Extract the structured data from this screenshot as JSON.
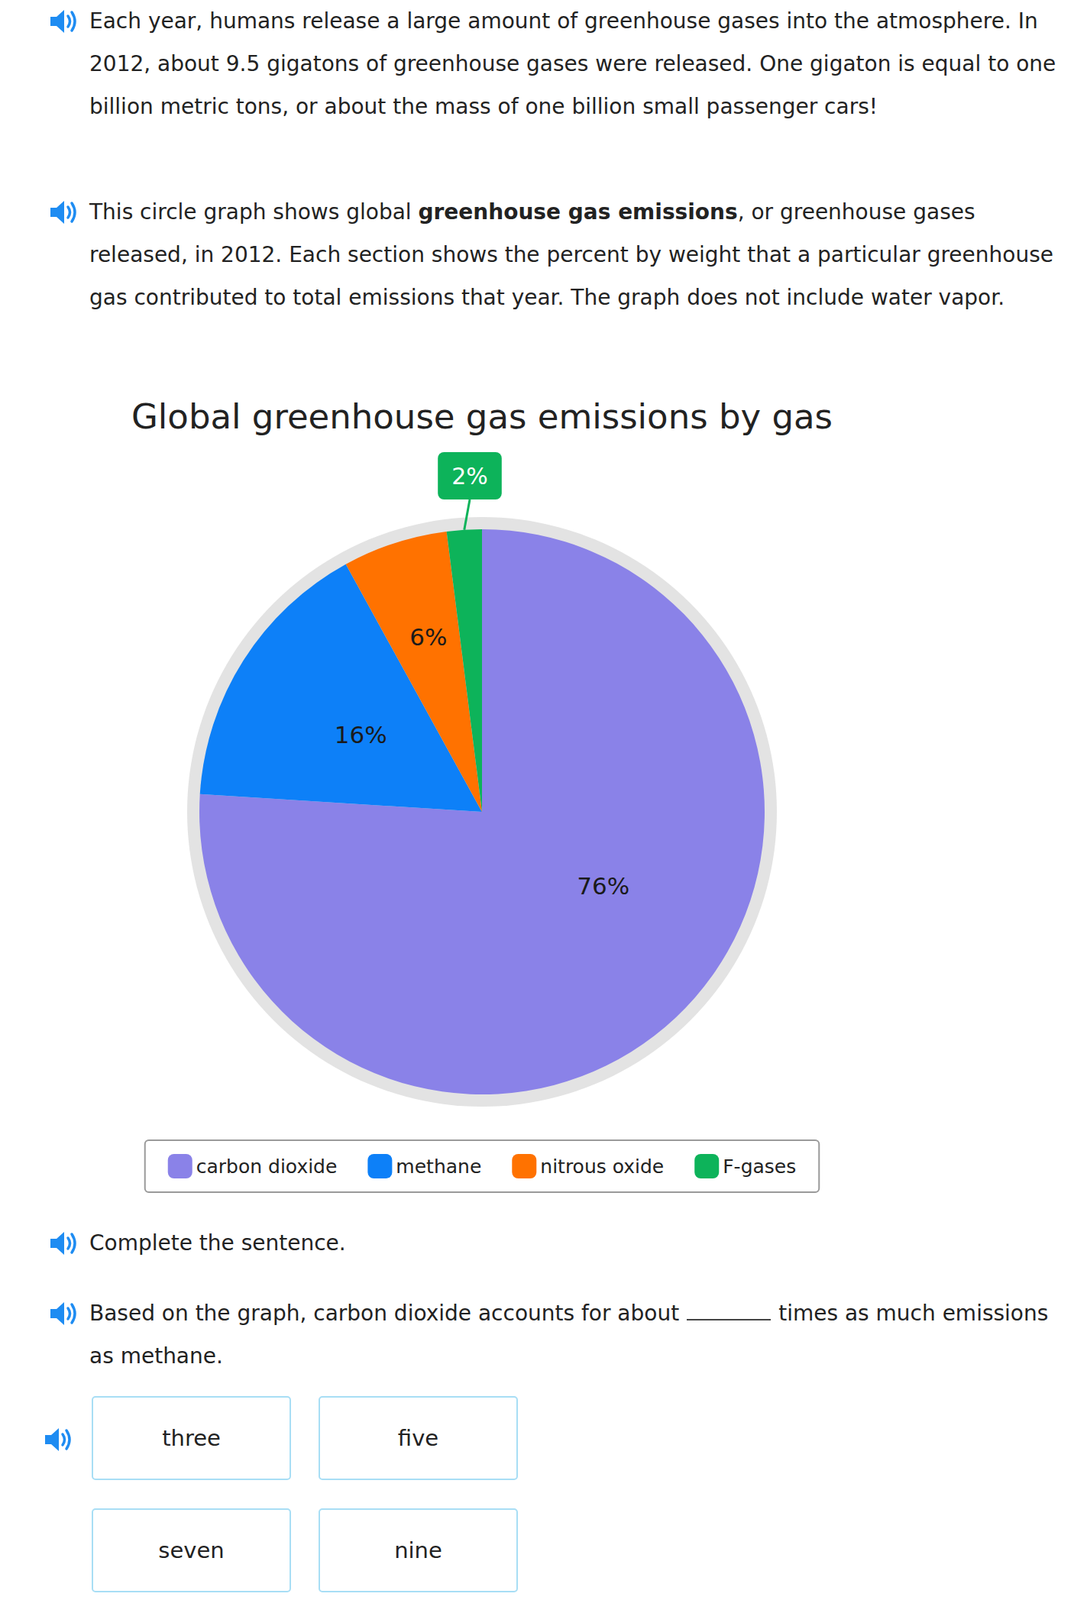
{
  "paragraphs": [
    [
      {
        "text": "Each year, humans release a large amount of greenhouse gases into the atmosphere. In 2012, about 9.5 gigatons of greenhouse gases were released. One gigaton is equal to one billion metric tons, or about the mass of one billion small passenger cars!"
      }
    ],
    [
      {
        "text": "This circle graph shows global "
      },
      {
        "text": "greenhouse gas emissions",
        "bold": true
      },
      {
        "text": ", or greenhouse gases released, in 2012. Each section shows the percent by weight that a particular greenhouse gas contributed to total emissions that year. The graph does not include water vapor."
      }
    ]
  ],
  "chart_data": {
    "type": "pie",
    "title": "Global greenhouse gas emissions by gas",
    "categories": [
      "carbon dioxide",
      "methane",
      "nitrous oxide",
      "F-gases"
    ],
    "values": [
      76,
      16,
      6,
      2
    ],
    "value_labels": [
      "76%",
      "16%",
      "6%",
      "2%"
    ],
    "colors": [
      "#8a82e8",
      "#0d80f8",
      "#ff7200",
      "#0db35a"
    ],
    "data_labels": true,
    "legend": "bottom"
  },
  "question": {
    "instruction": "Complete the sentence.",
    "before": "Based on the graph, carbon dioxide accounts for about",
    "after": "times as much emissions as methane."
  },
  "choices": [
    "three",
    "five",
    "seven",
    "nine"
  ]
}
